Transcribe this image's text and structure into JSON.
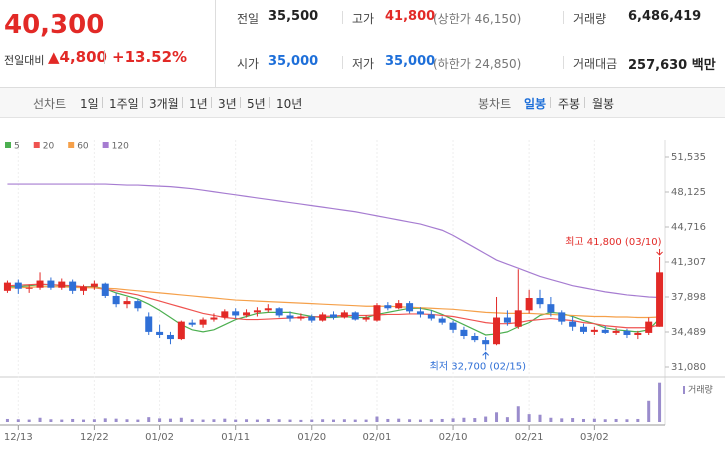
{
  "header": {
    "price": "40,300",
    "change_label": "전일대비",
    "change": "▲4,800",
    "change_rate": "+13.52%",
    "stats": [
      {
        "label": "전일",
        "value": "35,500",
        "color": "#222"
      },
      {
        "label": "고가",
        "value": "41,800",
        "note": "(상한가 46,150)",
        "color": "#e22926"
      },
      {
        "label": "거래량",
        "value": "6,486,419",
        "color": "#222"
      },
      {
        "label": "시가",
        "value": "35,000",
        "color": "#1e6fd9"
      },
      {
        "label": "저가",
        "value": "35,000",
        "note": "(하한가 24,850)",
        "color": "#1e6fd9"
      },
      {
        "label": "거래대금",
        "value": "257,630 백만",
        "color": "#222"
      }
    ]
  },
  "tabs": {
    "line_label": "선차트",
    "line": [
      "1일",
      "1주일",
      "3개월",
      "1년",
      "3년",
      "5년",
      "10년"
    ],
    "candle_label": "봉차트",
    "candle": [
      "일봉",
      "주봉",
      "월봉"
    ]
  },
  "chart_data": {
    "type": "candlestick",
    "categories": [
      null,
      "12/13",
      null,
      null,
      null,
      null,
      null,
      null,
      "12/22",
      null,
      null,
      null,
      null,
      null,
      "01/02",
      null,
      null,
      null,
      null,
      null,
      null,
      "01/11",
      null,
      null,
      null,
      null,
      null,
      null,
      "01/20",
      null,
      null,
      null,
      null,
      null,
      "02/01",
      null,
      null,
      null,
      null,
      null,
      null,
      "02/10",
      null,
      null,
      null,
      null,
      null,
      null,
      "02/21",
      null,
      null,
      null,
      null,
      null,
      "03/02",
      null,
      null,
      null,
      null,
      null,
      null
    ],
    "candles": {
      "open": [
        38500,
        39300,
        38700,
        38800,
        39500,
        38800,
        39400,
        38500,
        38900,
        39200,
        38000,
        37200,
        37500,
        36000,
        34500,
        34200,
        33800,
        35400,
        35200,
        35700,
        35900,
        36500,
        36100,
        36400,
        36600,
        36800,
        36100,
        35800,
        36000,
        35600,
        36200,
        35900,
        36400,
        35700,
        35600,
        37100,
        36800,
        37300,
        36500,
        36200,
        35800,
        35400,
        34700,
        34100,
        33700,
        33300,
        35900,
        35000,
        36600,
        37800,
        37200,
        36400,
        35500,
        35000,
        34500,
        34700,
        34400,
        34600,
        34200,
        34400,
        35000
      ],
      "high": [
        39500,
        39600,
        39100,
        40300,
        39800,
        39700,
        39600,
        39100,
        39500,
        39300,
        38300,
        37900,
        37700,
        36400,
        35200,
        34500,
        35600,
        35700,
        35900,
        36300,
        36700,
        36800,
        36700,
        36900,
        37200,
        36900,
        36500,
        36300,
        36200,
        36400,
        36500,
        36600,
        36500,
        36100,
        37300,
        37400,
        37600,
        37500,
        36900,
        36600,
        36000,
        35600,
        35000,
        34400,
        34000,
        37900,
        36600,
        40600,
        38600,
        38600,
        37900,
        36600,
        36000,
        35300,
        35000,
        35100,
        34900,
        34800,
        34600,
        35900,
        41800
      ],
      "low": [
        38300,
        38200,
        38300,
        38600,
        38600,
        38600,
        38200,
        38100,
        38600,
        37800,
        36900,
        36800,
        36500,
        34200,
        33900,
        33300,
        33700,
        35000,
        34900,
        35500,
        35700,
        35800,
        35900,
        36000,
        36400,
        35900,
        35500,
        35600,
        35400,
        35500,
        35700,
        35800,
        35600,
        35500,
        35500,
        36600,
        36700,
        36300,
        35900,
        35600,
        35200,
        34400,
        33800,
        33500,
        32700,
        33200,
        35100,
        34800,
        36300,
        36800,
        36000,
        35200,
        34600,
        34300,
        34200,
        34300,
        34200,
        33900,
        33800,
        34200,
        35000
      ],
      "close": [
        39300,
        38700,
        38800,
        39500,
        38800,
        39400,
        38500,
        38900,
        39200,
        38000,
        37200,
        37500,
        36800,
        34500,
        34200,
        33800,
        35500,
        35200,
        35700,
        35900,
        36500,
        36100,
        36400,
        36600,
        36800,
        36100,
        35800,
        36000,
        35600,
        36200,
        35900,
        36400,
        35700,
        35900,
        37100,
        36800,
        37300,
        36500,
        36200,
        35800,
        35400,
        34700,
        34100,
        33700,
        33300,
        35900,
        35400,
        36600,
        37800,
        37200,
        36400,
        35500,
        35000,
        34500,
        34700,
        34400,
        34600,
        34200,
        34400,
        35500,
        40300
      ]
    },
    "up_color": "#e22926",
    "down_color": "#2f6fd6",
    "series": [
      {
        "name": "5",
        "color": "#4caf50",
        "values": [
          38900,
          38900,
          39000,
          39100,
          39100,
          39000,
          38900,
          38900,
          38900,
          38700,
          38300,
          38000,
          37700,
          37200,
          36600,
          35900,
          35200,
          34700,
          34500,
          34700,
          35200,
          35700,
          36000,
          36300,
          36400,
          36400,
          36400,
          36200,
          36000,
          35900,
          35900,
          36000,
          35900,
          35900,
          36200,
          36400,
          36600,
          36800,
          36800,
          36600,
          36200,
          35700,
          35200,
          34700,
          34200,
          34300,
          34500,
          35000,
          35400,
          36100,
          36400,
          36300,
          36000,
          35600,
          35300,
          34900,
          34700,
          34600,
          34500,
          34700,
          35800
        ]
      },
      {
        "name": "20",
        "color": "#ef5350",
        "values": [
          39000,
          39050,
          39100,
          39150,
          39100,
          39050,
          39000,
          38900,
          38800,
          38650,
          38500,
          38300,
          38100,
          37800,
          37500,
          37200,
          36900,
          36600,
          36300,
          36100,
          35900,
          35800,
          35700,
          35700,
          35750,
          35800,
          35850,
          35900,
          35950,
          36000,
          36050,
          36100,
          36100,
          36100,
          36150,
          36200,
          36200,
          36250,
          36250,
          36200,
          36100,
          36000,
          35800,
          35600,
          35400,
          35300,
          35300,
          35400,
          35600,
          35700,
          35800,
          35700,
          35600,
          35400,
          35300,
          35100,
          35000,
          34900,
          34900,
          34900,
          35200
        ]
      },
      {
        "name": "60",
        "color": "#f5a04a",
        "values": [
          38800,
          38800,
          38850,
          38900,
          38900,
          38900,
          38850,
          38800,
          38800,
          38750,
          38700,
          38600,
          38500,
          38400,
          38300,
          38200,
          38100,
          38000,
          37900,
          37800,
          37700,
          37600,
          37550,
          37500,
          37450,
          37400,
          37350,
          37300,
          37250,
          37200,
          37150,
          37100,
          37050,
          37000,
          37000,
          37000,
          36950,
          36900,
          36850,
          36800,
          36750,
          36700,
          36600,
          36500,
          36400,
          36350,
          36300,
          36300,
          36300,
          36250,
          36200,
          36150,
          36100,
          36050,
          36000,
          36000,
          35950,
          35950,
          35900,
          35900,
          35950
        ]
      },
      {
        "name": "120",
        "color": "#a67cd1",
        "values": [
          48900,
          48900,
          48900,
          48900,
          48900,
          48900,
          48900,
          48900,
          48900,
          48900,
          48850,
          48800,
          48800,
          48750,
          48700,
          48650,
          48550,
          48450,
          48300,
          48150,
          48000,
          47850,
          47700,
          47550,
          47400,
          47250,
          47100,
          46950,
          46800,
          46650,
          46500,
          46350,
          46200,
          46000,
          45800,
          45600,
          45400,
          45200,
          45000,
          44700,
          44400,
          43900,
          43300,
          42700,
          42100,
          41500,
          41100,
          40700,
          40300,
          39900,
          39600,
          39300,
          39000,
          38800,
          38600,
          38400,
          38250,
          38100,
          38000,
          37900,
          37850
        ]
      }
    ],
    "volume": [
      500000,
      450000,
      400000,
      700000,
      450000,
      400000,
      500000,
      400000,
      450000,
      600000,
      550000,
      450000,
      400000,
      800000,
      600000,
      550000,
      700000,
      450000,
      400000,
      450000,
      550000,
      400000,
      450000,
      400000,
      500000,
      450000,
      400000,
      350000,
      400000,
      450000,
      400000,
      450000,
      400000,
      400000,
      900000,
      500000,
      550000,
      450000,
      400000,
      450000,
      500000,
      600000,
      700000,
      650000,
      900000,
      1600000,
      800000,
      2600000,
      1300000,
      1200000,
      700000,
      600000,
      650000,
      500000,
      550000,
      450000,
      500000,
      450000,
      500000,
      3500000,
      6486419
    ],
    "volume_label": "거래량",
    "volume_color": "#9a8ccc",
    "volume_lim": [
      0,
      6600000
    ],
    "ylim": [
      31080,
      51535
    ],
    "yticks": [
      {
        "value": 51535,
        "label": "51,535"
      },
      {
        "value": 48125,
        "label": "48,125"
      },
      {
        "value": 44716,
        "label": "44,716"
      },
      {
        "value": 41307,
        "label": "41,307"
      },
      {
        "value": 37898,
        "label": "37,898"
      },
      {
        "value": 34489,
        "label": "34,489"
      },
      {
        "value": 31080,
        "label": "31,080"
      }
    ],
    "annotations": {
      "high": "최고 41,800 (03/10)",
      "low": "최저 32,700 (02/15)"
    }
  }
}
